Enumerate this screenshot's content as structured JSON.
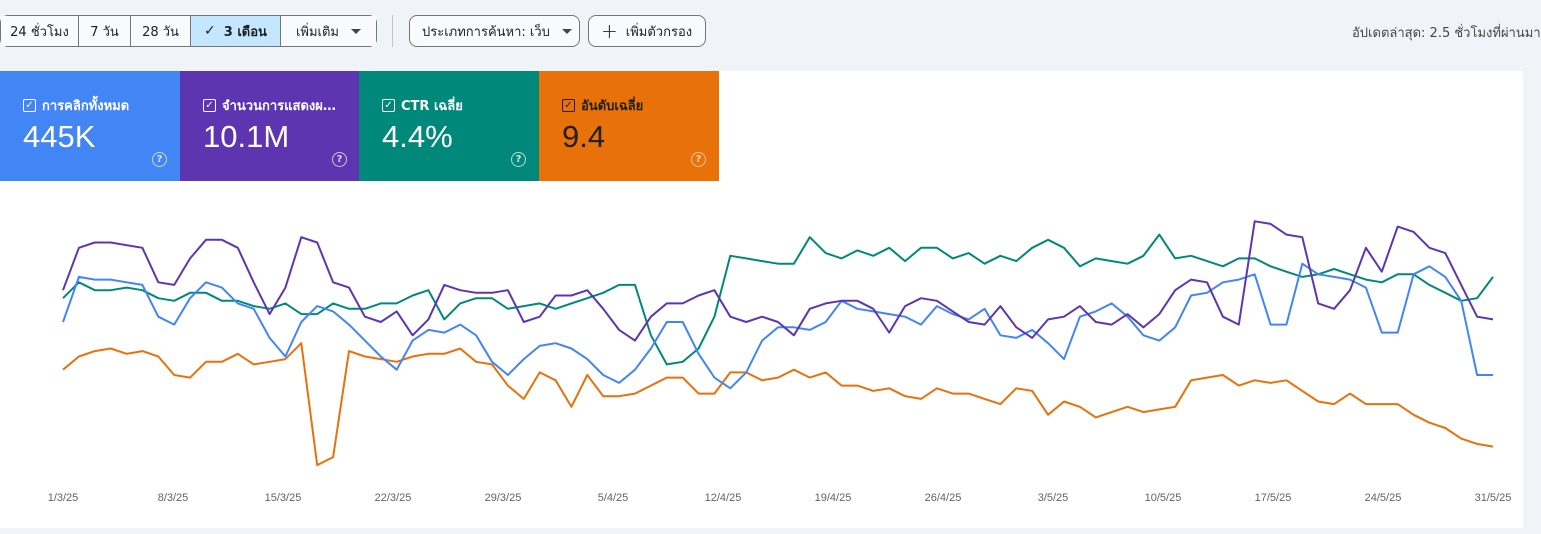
{
  "toolbar": {
    "ranges": [
      {
        "label": "24 ชั่วโมง",
        "active": false
      },
      {
        "label": "7 วัน",
        "active": false
      },
      {
        "label": "28 วัน",
        "active": false
      },
      {
        "label": "3 เดือน",
        "active": true
      },
      {
        "label": "เพิ่มเติม",
        "active": false
      }
    ],
    "search_type": "ประเภทการค้นหา: เว็บ",
    "add_filter": "เพิ่มตัวกรอง",
    "updated": "อัปเดตล่าสุด: 2.5 ชั่วโมงที่ผ่านมา"
  },
  "cards": [
    {
      "label": "การคลิกทั้งหมด",
      "value": "445K",
      "color": "#4285f4",
      "checked": true
    },
    {
      "label": "จำนวนการแสดงผ…",
      "value": "10.1M",
      "color": "#5e35b1",
      "checked": true
    },
    {
      "label": "CTR เฉลี่ย",
      "value": "4.4%",
      "color": "#00897b",
      "checked": true
    },
    {
      "label": "อันดับเฉลี่ย",
      "value": "9.4",
      "color": "#e8710a",
      "checked": true
    }
  ],
  "chart_data": {
    "type": "line",
    "x_tick_labels": [
      "1/3/25",
      "8/3/25",
      "15/3/25",
      "22/3/25",
      "29/3/25",
      "5/4/25",
      "12/4/25",
      "19/4/25",
      "26/4/25",
      "3/5/25",
      "10/5/25",
      "17/5/25",
      "24/5/25",
      "31/5/25"
    ],
    "y_axis": "relative (0 = top of plot, 1 = bottom), unlabeled in original",
    "series": [
      {
        "name": "การคลิกทั้งหมด",
        "color": "#4285f4",
        "values": [
          0.4,
          0.23,
          0.24,
          0.24,
          0.25,
          0.26,
          0.38,
          0.41,
          0.31,
          0.25,
          0.27,
          0.33,
          0.35,
          0.46,
          0.53,
          0.4,
          0.34,
          0.36,
          0.41,
          0.47,
          0.53,
          0.58,
          0.47,
          0.43,
          0.44,
          0.41,
          0.45,
          0.55,
          0.6,
          0.54,
          0.49,
          0.48,
          0.5,
          0.54,
          0.6,
          0.63,
          0.58,
          0.5,
          0.4,
          0.4,
          0.52,
          0.61,
          0.65,
          0.59,
          0.47,
          0.42,
          0.42,
          0.43,
          0.4,
          0.32,
          0.35,
          0.36,
          0.37,
          0.38,
          0.41,
          0.34,
          0.37,
          0.39,
          0.35,
          0.45,
          0.46,
          0.43,
          0.48,
          0.54,
          0.38,
          0.36,
          0.33,
          0.38,
          0.45,
          0.47,
          0.42,
          0.3,
          0.29,
          0.25,
          0.24,
          0.22,
          0.41,
          0.41,
          0.18,
          0.22,
          0.23,
          0.24,
          0.27,
          0.44,
          0.44,
          0.22,
          0.19,
          0.23,
          0.32,
          0.6,
          0.6
        ]
      },
      {
        "name": "จำนวนการแสดงผล",
        "color": "#5e35b1",
        "values": [
          0.28,
          0.12,
          0.1,
          0.1,
          0.11,
          0.12,
          0.25,
          0.26,
          0.16,
          0.09,
          0.09,
          0.12,
          0.25,
          0.37,
          0.27,
          0.08,
          0.1,
          0.25,
          0.27,
          0.38,
          0.4,
          0.36,
          0.45,
          0.39,
          0.26,
          0.28,
          0.29,
          0.29,
          0.28,
          0.4,
          0.38,
          0.3,
          0.3,
          0.28,
          0.35,
          0.43,
          0.47,
          0.38,
          0.33,
          0.33,
          0.3,
          0.28,
          0.38,
          0.4,
          0.38,
          0.4,
          0.45,
          0.35,
          0.33,
          0.32,
          0.32,
          0.35,
          0.44,
          0.34,
          0.31,
          0.32,
          0.36,
          0.4,
          0.41,
          0.34,
          0.42,
          0.46,
          0.39,
          0.38,
          0.34,
          0.4,
          0.41,
          0.37,
          0.42,
          0.37,
          0.28,
          0.24,
          0.25,
          0.38,
          0.41,
          0.02,
          0.03,
          0.07,
          0.08,
          0.33,
          0.35,
          0.28,
          0.12,
          0.21,
          0.04,
          0.06,
          0.12,
          0.14,
          0.26,
          0.38,
          0.39
        ]
      },
      {
        "name": "CTR เฉลี่ย",
        "color": "#00897b",
        "values": [
          0.31,
          0.25,
          0.28,
          0.28,
          0.27,
          0.28,
          0.31,
          0.32,
          0.29,
          0.29,
          0.32,
          0.32,
          0.34,
          0.35,
          0.33,
          0.37,
          0.37,
          0.33,
          0.35,
          0.35,
          0.33,
          0.33,
          0.3,
          0.28,
          0.39,
          0.33,
          0.31,
          0.31,
          0.35,
          0.34,
          0.33,
          0.35,
          0.33,
          0.31,
          0.29,
          0.26,
          0.26,
          0.45,
          0.56,
          0.55,
          0.5,
          0.38,
          0.15,
          0.16,
          0.17,
          0.18,
          0.18,
          0.08,
          0.14,
          0.16,
          0.13,
          0.15,
          0.12,
          0.17,
          0.12,
          0.12,
          0.16,
          0.14,
          0.18,
          0.15,
          0.17,
          0.12,
          0.09,
          0.12,
          0.19,
          0.16,
          0.17,
          0.18,
          0.15,
          0.07,
          0.16,
          0.15,
          0.17,
          0.19,
          0.16,
          0.16,
          0.19,
          0.21,
          0.23,
          0.22,
          0.2,
          0.22,
          0.24,
          0.25,
          0.22,
          0.22,
          0.26,
          0.29,
          0.32,
          0.31,
          0.23
        ]
      }
    ],
    "position_series": {
      "name": "อันดับเฉลี่ย",
      "color": "#e8710a",
      "values": [
        0.58,
        0.53,
        0.51,
        0.5,
        0.52,
        0.51,
        0.53,
        0.6,
        0.61,
        0.55,
        0.55,
        0.52,
        0.56,
        0.55,
        0.54,
        0.48,
        0.94,
        0.91,
        0.51,
        0.53,
        0.54,
        0.55,
        0.53,
        0.52,
        0.52,
        0.5,
        0.55,
        0.56,
        0.64,
        0.69,
        0.59,
        0.62,
        0.72,
        0.6,
        0.68,
        0.68,
        0.67,
        0.64,
        0.61,
        0.61,
        0.67,
        0.67,
        0.59,
        0.59,
        0.62,
        0.61,
        0.58,
        0.61,
        0.59,
        0.64,
        0.64,
        0.66,
        0.65,
        0.68,
        0.69,
        0.65,
        0.67,
        0.67,
        0.69,
        0.71,
        0.65,
        0.66,
        0.75,
        0.7,
        0.72,
        0.76,
        0.74,
        0.72,
        0.74,
        0.73,
        0.72,
        0.62,
        0.61,
        0.6,
        0.64,
        0.62,
        0.63,
        0.62,
        0.66,
        0.7,
        0.71,
        0.67,
        0.71,
        0.71,
        0.71,
        0.75,
        0.78,
        0.8,
        0.84,
        0.86,
        0.87
      ]
    }
  }
}
